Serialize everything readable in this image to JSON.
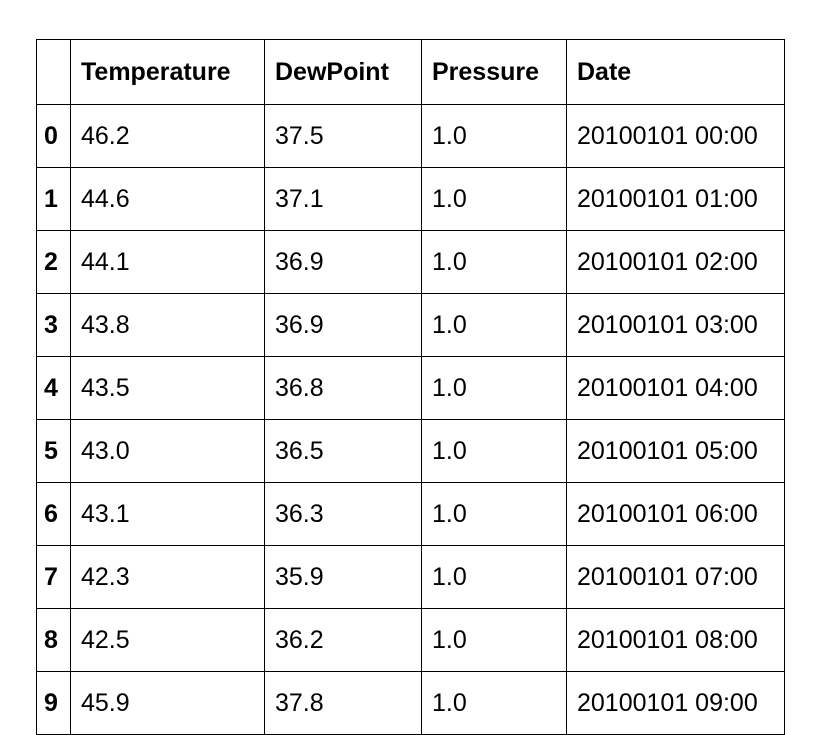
{
  "table": {
    "index_header": "",
    "columns": [
      "Temperature",
      "DewPoint",
      "Pressure",
      "Date"
    ],
    "rows": [
      {
        "index": "0",
        "cells": [
          "46.2",
          "37.5",
          "1.0",
          "20100101 00:00"
        ]
      },
      {
        "index": "1",
        "cells": [
          "44.6",
          "37.1",
          "1.0",
          "20100101 01:00"
        ]
      },
      {
        "index": "2",
        "cells": [
          "44.1",
          "36.9",
          "1.0",
          "20100101 02:00"
        ]
      },
      {
        "index": "3",
        "cells": [
          "43.8",
          "36.9",
          "1.0",
          "20100101 03:00"
        ]
      },
      {
        "index": "4",
        "cells": [
          "43.5",
          "36.8",
          "1.0",
          "20100101 04:00"
        ]
      },
      {
        "index": "5",
        "cells": [
          "43.0",
          "36.5",
          "1.0",
          "20100101 05:00"
        ]
      },
      {
        "index": "6",
        "cells": [
          "43.1",
          "36.3",
          "1.0",
          "20100101 06:00"
        ]
      },
      {
        "index": "7",
        "cells": [
          "42.3",
          "35.9",
          "1.0",
          "20100101 07:00"
        ]
      },
      {
        "index": "8",
        "cells": [
          "42.5",
          "36.2",
          "1.0",
          "20100101 08:00"
        ]
      },
      {
        "index": "9",
        "cells": [
          "45.9",
          "37.8",
          "1.0",
          "20100101 09:00"
        ]
      }
    ]
  }
}
